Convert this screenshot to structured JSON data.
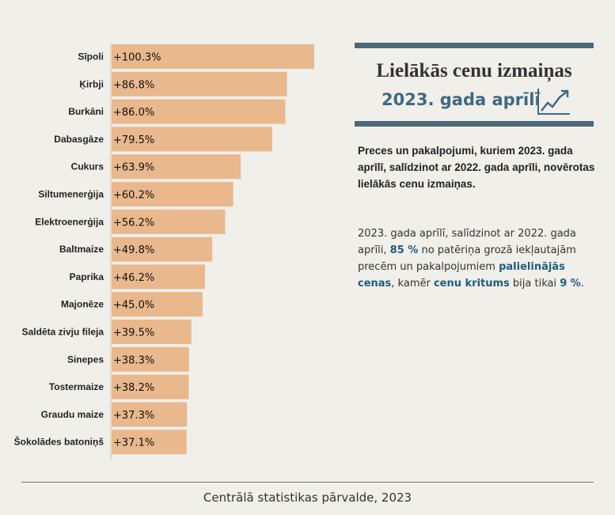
{
  "title": "Lielākās cenu izmaiņas",
  "subtitle": "2023. gada aprīlī",
  "icon": "trend-up-chart-icon",
  "description_bold": "Preces un pakalpojumi, kuriem 2023. gada aprīlī, salīdzinot ar 2022. gada aprīli, novērotas lielākās cenu izmaiņas.",
  "description": {
    "part1": "2023. gada aprīlī, salīdzinot ar 2022. gada aprīli, ",
    "hl1": "85 %",
    "part2": " no patēriņa grozā iekļautajām precēm un pakalpojumiem ",
    "hl2": "palielinājās cenas",
    "part3": ", kamēr ",
    "hl3": "cenu kritums",
    "part4": " bija tikai ",
    "hl4": "9 %",
    "part5": "."
  },
  "footer": "Centrālā statistikas pārvalde, 2023",
  "colors": {
    "bar": "#e9b88d",
    "accent": "#3f6883",
    "rule": "#4c6878",
    "background": "#f1efea"
  },
  "chart_data": {
    "type": "bar",
    "orientation": "horizontal",
    "categories": [
      "Sīpoli",
      "Ķirbji",
      "Burkāni",
      "Dabasgāze",
      "Cukurs",
      "Siltumenerģija",
      "Elektroenerģija",
      "Baltmaize",
      "Paprika",
      "Majonēze",
      "Saldēta zivju fileja",
      "Sinepes",
      "Tostermaize",
      "Graudu maize",
      "Šokolādes batoniņš"
    ],
    "values": [
      100.3,
      86.8,
      86.0,
      79.5,
      63.9,
      60.2,
      56.2,
      49.8,
      46.2,
      45.0,
      39.5,
      38.3,
      38.2,
      37.3,
      37.1
    ],
    "value_labels": [
      "+100.3%",
      "+86.8%",
      "+86.0%",
      "+79.5%",
      "+63.9%",
      "+60.2%",
      "+56.2%",
      "+49.8%",
      "+46.2%",
      "+45.0%",
      "+39.5%",
      "+38.3%",
      "+38.2%",
      "+37.3%",
      "+37.1%"
    ],
    "xlim": [
      0,
      100.3
    ],
    "grid": false,
    "legend": false
  }
}
